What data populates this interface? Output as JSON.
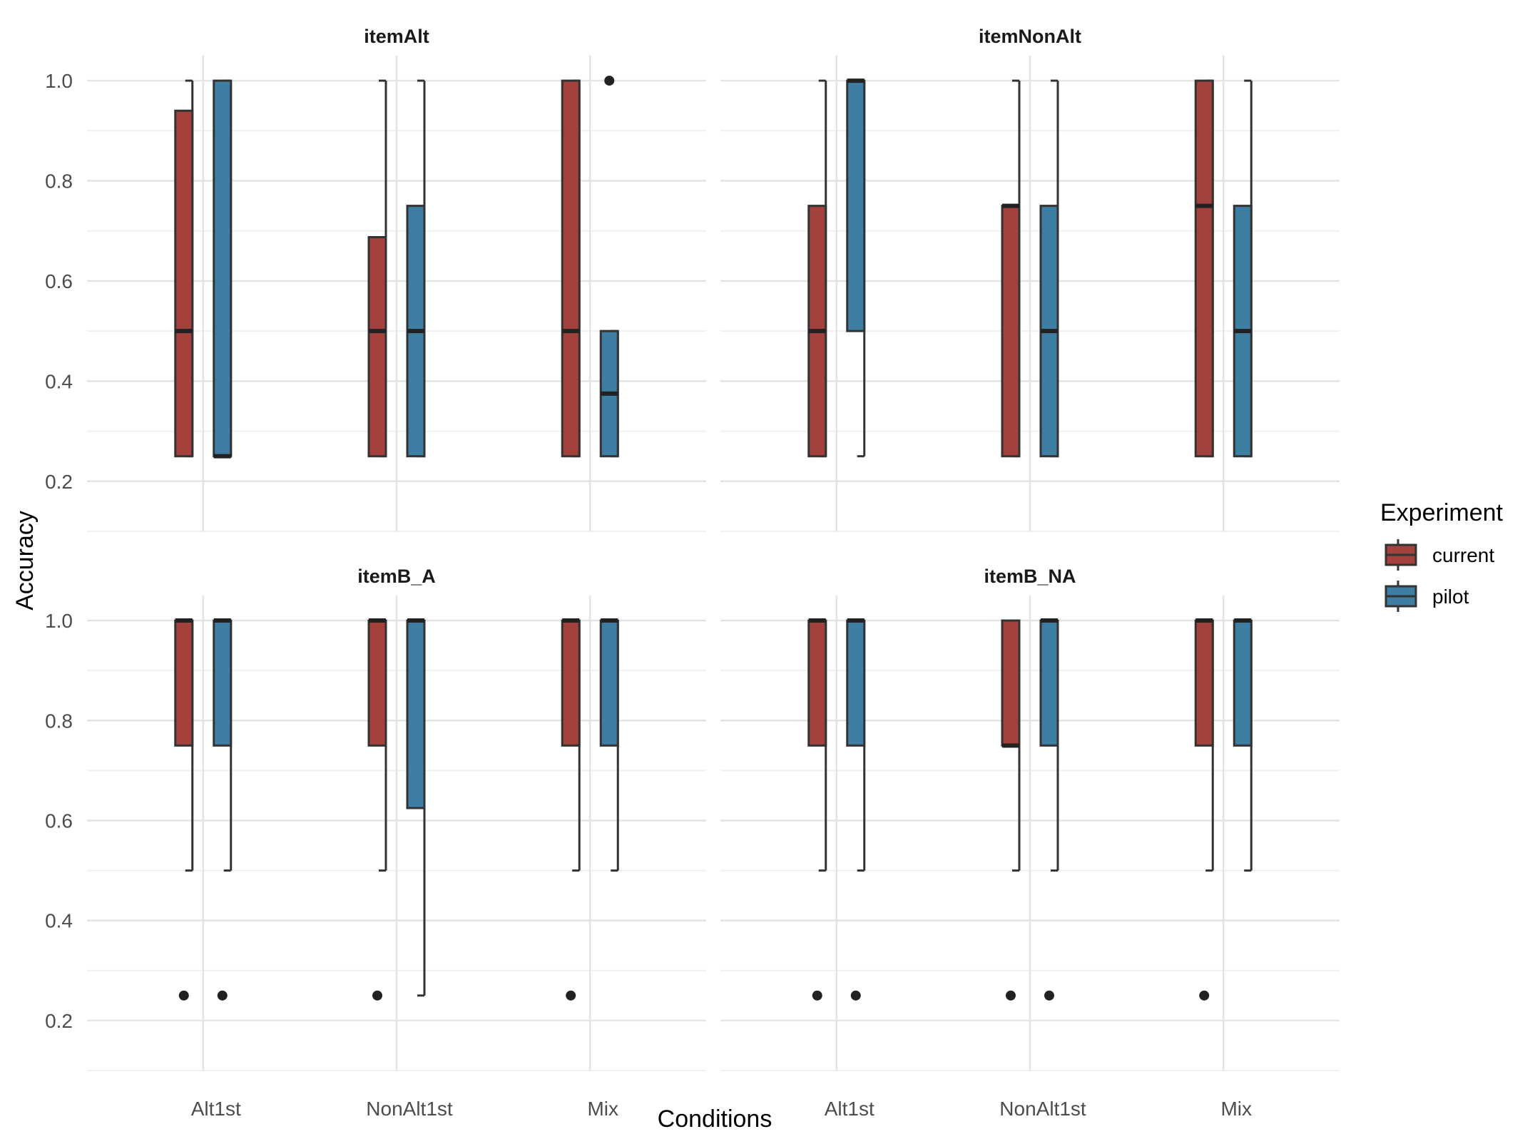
{
  "chart_data": {
    "type": "boxplot",
    "xlabel": "Conditions",
    "ylabel": "Accuracy",
    "ylim": [
      0.1,
      1.05
    ],
    "y_ticks": [
      "0.2",
      "0.4",
      "0.6",
      "0.8",
      "1.0"
    ],
    "categories": [
      "Alt1st",
      "NonAlt1st",
      "Mix"
    ],
    "legend": {
      "title": "Experiment",
      "position": "right",
      "entries": [
        {
          "name": "current",
          "color": "#A3413C"
        },
        {
          "name": "pilot",
          "color": "#3F7EA3"
        }
      ]
    },
    "grid": true,
    "panels": [
      {
        "title": "itemAlt",
        "boxes": [
          {
            "category": "Alt1st",
            "series": "current",
            "whisker_low": 0.25,
            "q1": 0.25,
            "median": 0.5,
            "q3": 0.94,
            "whisker_high": 1.0,
            "outliers": []
          },
          {
            "category": "Alt1st",
            "series": "pilot",
            "whisker_low": 0.25,
            "q1": 0.25,
            "median": 0.25,
            "q3": 1.0,
            "whisker_high": 1.0,
            "outliers": []
          },
          {
            "category": "NonAlt1st",
            "series": "current",
            "whisker_low": 0.25,
            "q1": 0.25,
            "median": 0.5,
            "q3": 0.6875,
            "whisker_high": 1.0,
            "outliers": []
          },
          {
            "category": "NonAlt1st",
            "series": "pilot",
            "whisker_low": 0.25,
            "q1": 0.25,
            "median": 0.5,
            "q3": 0.75,
            "whisker_high": 1.0,
            "outliers": []
          },
          {
            "category": "Mix",
            "series": "current",
            "whisker_low": 0.25,
            "q1": 0.25,
            "median": 0.5,
            "q3": 1.0,
            "whisker_high": 1.0,
            "outliers": []
          },
          {
            "category": "Mix",
            "series": "pilot",
            "whisker_low": 0.25,
            "q1": 0.25,
            "median": 0.375,
            "q3": 0.5,
            "whisker_high": 0.5,
            "outliers": [
              1.0
            ]
          }
        ]
      },
      {
        "title": "itemNonAlt",
        "boxes": [
          {
            "category": "Alt1st",
            "series": "current",
            "whisker_low": 0.25,
            "q1": 0.25,
            "median": 0.5,
            "q3": 0.75,
            "whisker_high": 1.0,
            "outliers": []
          },
          {
            "category": "Alt1st",
            "series": "pilot",
            "whisker_low": 0.25,
            "q1": 0.5,
            "median": 1.0,
            "q3": 1.0,
            "whisker_high": 1.0,
            "outliers": []
          },
          {
            "category": "NonAlt1st",
            "series": "current",
            "whisker_low": 0.25,
            "q1": 0.25,
            "median": 0.75,
            "q3": 0.75,
            "whisker_high": 1.0,
            "outliers": []
          },
          {
            "category": "NonAlt1st",
            "series": "pilot",
            "whisker_low": 0.25,
            "q1": 0.25,
            "median": 0.5,
            "q3": 0.75,
            "whisker_high": 1.0,
            "outliers": []
          },
          {
            "category": "Mix",
            "series": "current",
            "whisker_low": 0.25,
            "q1": 0.25,
            "median": 0.75,
            "q3": 1.0,
            "whisker_high": 1.0,
            "outliers": []
          },
          {
            "category": "Mix",
            "series": "pilot",
            "whisker_low": 0.25,
            "q1": 0.25,
            "median": 0.5,
            "q3": 0.75,
            "whisker_high": 1.0,
            "outliers": []
          }
        ]
      },
      {
        "title": "itemB_A",
        "boxes": [
          {
            "category": "Alt1st",
            "series": "current",
            "whisker_low": 0.5,
            "q1": 0.75,
            "median": 1.0,
            "q3": 1.0,
            "whisker_high": 1.0,
            "outliers": [
              0.25
            ]
          },
          {
            "category": "Alt1st",
            "series": "pilot",
            "whisker_low": 0.5,
            "q1": 0.75,
            "median": 1.0,
            "q3": 1.0,
            "whisker_high": 1.0,
            "outliers": [
              0.25
            ]
          },
          {
            "category": "NonAlt1st",
            "series": "current",
            "whisker_low": 0.5,
            "q1": 0.75,
            "median": 1.0,
            "q3": 1.0,
            "whisker_high": 1.0,
            "outliers": [
              0.25
            ]
          },
          {
            "category": "NonAlt1st",
            "series": "pilot",
            "whisker_low": 0.25,
            "q1": 0.625,
            "median": 1.0,
            "q3": 1.0,
            "whisker_high": 1.0,
            "outliers": []
          },
          {
            "category": "Mix",
            "series": "current",
            "whisker_low": 0.5,
            "q1": 0.75,
            "median": 1.0,
            "q3": 1.0,
            "whisker_high": 1.0,
            "outliers": [
              0.25
            ]
          },
          {
            "category": "Mix",
            "series": "pilot",
            "whisker_low": 0.5,
            "q1": 0.75,
            "median": 1.0,
            "q3": 1.0,
            "whisker_high": 1.0,
            "outliers": []
          }
        ]
      },
      {
        "title": "itemB_NA",
        "boxes": [
          {
            "category": "Alt1st",
            "series": "current",
            "whisker_low": 0.5,
            "q1": 0.75,
            "median": 1.0,
            "q3": 1.0,
            "whisker_high": 1.0,
            "outliers": [
              0.25
            ]
          },
          {
            "category": "Alt1st",
            "series": "pilot",
            "whisker_low": 0.5,
            "q1": 0.75,
            "median": 1.0,
            "q3": 1.0,
            "whisker_high": 1.0,
            "outliers": [
              0.25
            ]
          },
          {
            "category": "NonAlt1st",
            "series": "current",
            "whisker_low": 0.5,
            "q1": 0.75,
            "median": 0.75,
            "q3": 1.0,
            "whisker_high": 1.0,
            "outliers": [
              0.25
            ]
          },
          {
            "category": "NonAlt1st",
            "series": "pilot",
            "whisker_low": 0.5,
            "q1": 0.75,
            "median": 1.0,
            "q3": 1.0,
            "whisker_high": 1.0,
            "outliers": [
              0.25
            ]
          },
          {
            "category": "Mix",
            "series": "current",
            "whisker_low": 0.5,
            "q1": 0.75,
            "median": 1.0,
            "q3": 1.0,
            "whisker_high": 1.0,
            "outliers": [
              0.25
            ]
          },
          {
            "category": "Mix",
            "series": "pilot",
            "whisker_low": 0.5,
            "q1": 0.75,
            "median": 1.0,
            "q3": 1.0,
            "whisker_high": 1.0,
            "outliers": []
          }
        ]
      }
    ]
  }
}
